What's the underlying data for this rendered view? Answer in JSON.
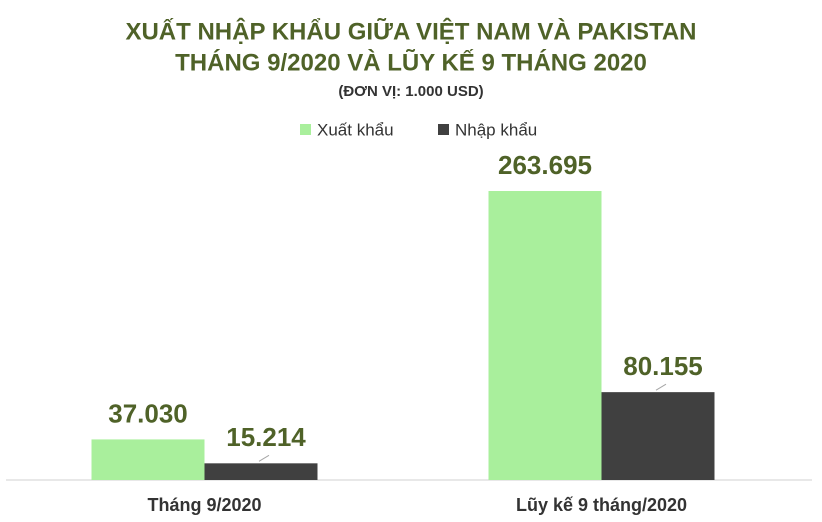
{
  "chart_data": {
    "type": "bar",
    "title": [
      "XUẤT NHẬP KHẨU GIỮA VIỆT NAM VÀ PAKISTAN",
      "THÁNG 9/2020 VÀ LŨY KẾ 9 THÁNG 2020"
    ],
    "subtitle": "(ĐƠN VỊ: 1.000 USD)",
    "categories": [
      "Tháng 9/2020",
      "Lũy kế 9 tháng/2020"
    ],
    "series": [
      {
        "name": "Xuất khẩu",
        "color": "#a9ef9c",
        "values": [
          37030,
          263695
        ],
        "value_labels": [
          "37.030",
          "263.695"
        ]
      },
      {
        "name": "Nhập khẩu",
        "color": "#404040",
        "values": [
          15214,
          80155
        ],
        "value_labels": [
          "15.214",
          "80.155"
        ]
      }
    ],
    "legend": "top"
  }
}
